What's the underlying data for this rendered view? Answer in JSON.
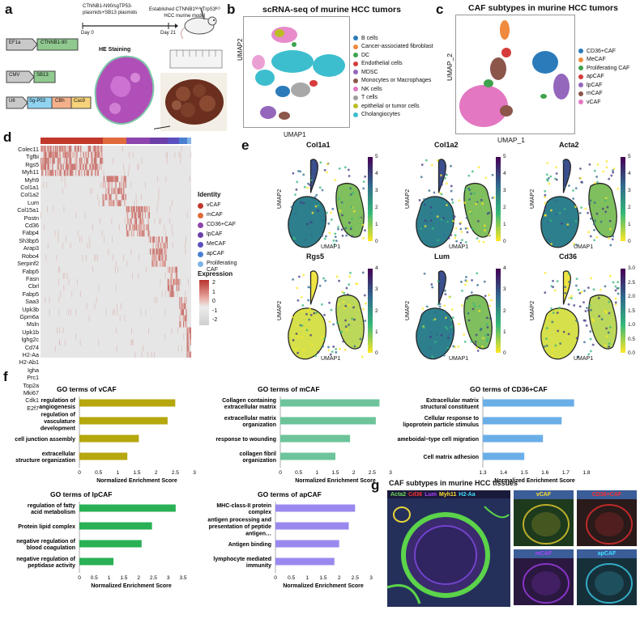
{
  "panels": {
    "a": {
      "label": "a",
      "timeline_top": "CTNNB1-N90/sgTP53-",
      "timeline_top2": "plasmids+SB13 plasmids",
      "day0": "Day 0",
      "est_line1": "Established CTNNB1ᴺ⁹⁰/TrpS3ᴷᴼ",
      "est_line2": "HCC murine model",
      "day21": "Day 21",
      "he_title": "HE Staining",
      "constructs": [
        {
          "promoter": "EF1a",
          "gene": "CTNNB1-90",
          "gene_color": "#8fc98f"
        },
        {
          "promoter": "CMV",
          "gene": "SB13",
          "gene_color": "#8fc98f"
        },
        {
          "promoter": "U6",
          "gene": "Sg-P53",
          "gene_color": "#8fd3f0",
          "extra1": "CBh",
          "extra1_color": "#f3b08a",
          "extra2": "Cas9",
          "extra2_color": "#f7d27a"
        }
      ]
    },
    "b": {
      "label": "b",
      "title": "scRNA-seq of murine HCC tumors",
      "xlabel": "UMAP1",
      "ylabel": "UMAP2",
      "legend": [
        {
          "name": "B cells",
          "color": "#2b7bba"
        },
        {
          "name": "Cancer-associated fibroblast",
          "color": "#f08a3c"
        },
        {
          "name": "DC",
          "color": "#3fa34d"
        },
        {
          "name": "Endothelial cells",
          "color": "#d63b3b"
        },
        {
          "name": "MDSC",
          "color": "#9467bd"
        },
        {
          "name": "Monocytes or Macrophages",
          "color": "#8c564b"
        },
        {
          "name": "NK cells",
          "color": "#e377c2"
        },
        {
          "name": "T cells",
          "color": "#9e9e9e"
        },
        {
          "name": "epithelial or tumor cells",
          "color": "#bcbd22"
        },
        {
          "name": "Cholangiocytes",
          "color": "#3dbecf"
        }
      ]
    },
    "c": {
      "label": "c",
      "title": "CAF subtypes in murine HCC tumors",
      "xlabel": "UMAP_1",
      "ylabel": "UMAP_2",
      "legend": [
        {
          "name": "CD36+CAF",
          "color": "#2b7bba"
        },
        {
          "name": "MeCAF",
          "color": "#f08a3c"
        },
        {
          "name": "Proliferating CAF",
          "color": "#3fa34d"
        },
        {
          "name": "apCAF",
          "color": "#d63b3b"
        },
        {
          "name": "lpCAF",
          "color": "#9467bd"
        },
        {
          "name": "mCAF",
          "color": "#8c564b"
        },
        {
          "name": "vCAF",
          "color": "#e377c2"
        }
      ]
    },
    "d": {
      "label": "d",
      "genes": [
        "Colec11",
        "Tgfbi",
        "Rgs5",
        "Myh11",
        "Myh9",
        "Col1a1",
        "Col1a2",
        "Lum",
        "Col15a1",
        "Postn",
        "Cd36",
        "Fabp4",
        "Sh3bp5",
        "Arap3",
        "Robo4",
        "Serpinf2",
        "Fabp5",
        "Fasn",
        "Cbrl",
        "Fabp5",
        "Saa3",
        "Upk3b",
        "Gpm6a",
        "Msln",
        "Upk1b",
        "Ighg2c",
        "Cd74",
        "H2-Aa",
        "H2-Ab1",
        "Igha",
        "Prc1",
        "Top2a",
        "Mki67",
        "Cdk1",
        "E2f7"
      ],
      "identity_title": "Identity",
      "identity": [
        {
          "name": "vCAF",
          "color": "#c0392b"
        },
        {
          "name": "mCAF",
          "color": "#e06a3b"
        },
        {
          "name": "CD36+CAF",
          "color": "#8e44ad"
        },
        {
          "name": "lpCAF",
          "color": "#6c3fa8"
        },
        {
          "name": "MeCAF",
          "color": "#5b4fc0"
        },
        {
          "name": "apCAF",
          "color": "#4a7fd0"
        },
        {
          "name": "Proliferating CAF",
          "color": "#7fb3e8"
        }
      ],
      "expression_title": "Expression",
      "expression_ticks": [
        "2",
        "1",
        "0",
        "-1",
        "-2"
      ]
    },
    "e": {
      "label": "e",
      "xlabel": "UMAP1",
      "ylabel": "UMAP2",
      "plots": [
        {
          "gene": "Col1a1",
          "ticks": [
            "5",
            "4",
            "3",
            "2",
            "1",
            "0"
          ]
        },
        {
          "gene": "Col1a2",
          "ticks": [
            "5",
            "4",
            "3",
            "2",
            "1",
            "0"
          ]
        },
        {
          "gene": "Acta2",
          "ticks": [
            "5",
            "4",
            "3",
            "2",
            "1",
            "0"
          ]
        },
        {
          "gene": "Rgs5",
          "ticks": [
            "4",
            "3",
            "2",
            "1",
            "0"
          ]
        },
        {
          "gene": "Lum",
          "ticks": [
            "4",
            "3",
            "2",
            "1",
            "0"
          ]
        },
        {
          "gene": "Cd36",
          "ticks": [
            "3.0",
            "2.5",
            "2.0",
            "1.5",
            "1.0",
            "0.5",
            "0.0"
          ]
        }
      ]
    },
    "f": {
      "label": "f",
      "xlabel": "Normalized Enrichment Score"
    },
    "g": {
      "label": "g",
      "title": "CAF subtypes in murine HCC tissues",
      "legend": [
        {
          "name": "Acta2",
          "color": "#6fdc5a"
        },
        {
          "name": "Cd36",
          "color": "#ff3030"
        },
        {
          "name": "Lum",
          "color": "#b040ff"
        },
        {
          "name": "Myh11",
          "color": "#ffe030"
        },
        {
          "name": "H2-Aa",
          "color": "#40e0ff"
        }
      ],
      "small": [
        {
          "name": "vCAF",
          "color": "#ffe030"
        },
        {
          "name": "CD36+CAF",
          "color": "#ff3030"
        },
        {
          "name": "mCAF",
          "color": "#b040ff"
        },
        {
          "name": "apCAF",
          "color": "#40e0ff"
        }
      ]
    }
  },
  "chart_data": [
    {
      "type": "bar",
      "orientation": "horizontal",
      "title": "GO terms of vCAF",
      "color": "#b5a70d",
      "categories": [
        "regulation of angiogenesis",
        "regulation of vasculature development",
        "cell junction assembly",
        "extracellular structure organization"
      ],
      "values": [
        2.5,
        2.3,
        1.55,
        1.25
      ],
      "xlim": [
        0,
        3
      ],
      "xticks": [
        "0",
        "0.5",
        "1",
        "1.5",
        "2",
        "2.5",
        "3"
      ],
      "xlabel": "Normalized Enrichment Score"
    },
    {
      "type": "bar",
      "orientation": "horizontal",
      "title": "GO terms of mCAF",
      "color": "#6dc49a",
      "categories": [
        "Collagen containing extracellular matrix",
        "extracellular matrix organization",
        "response to wounding",
        "collagen fibril organization"
      ],
      "values": [
        2.7,
        2.6,
        1.9,
        1.5
      ],
      "xlim": [
        0,
        3
      ],
      "xticks": [
        "0",
        "0.5",
        "1",
        "1.5",
        "2",
        "2.5",
        "3"
      ],
      "xlabel": "Normalized Enrichment Score"
    },
    {
      "type": "bar",
      "orientation": "horizontal",
      "title": "GO terms of CD36+CAF",
      "color": "#6aaee8",
      "categories": [
        "Extracellular matrix structural constituent",
        "Cellular response to lipoprotein particle stimulus",
        "ameboidal−type cell migration",
        "Cell matrix adhesion"
      ],
      "values": [
        1.74,
        1.68,
        1.59,
        1.5
      ],
      "xlim": [
        1.3,
        1.8
      ],
      "xticks": [
        "1.3",
        "1.4",
        "1.5",
        "1.6",
        "1.7",
        "1.8"
      ],
      "xlabel": "Normalized Enrichment Score"
    },
    {
      "type": "bar",
      "orientation": "horizontal",
      "title": "GO terms of lpCAF",
      "color": "#2ab055",
      "categories": [
        "regulation of fatty acid metabolism",
        "Protein lipid complex",
        "negative regulation of blood coagulation",
        "negative regulation of peptidase activity"
      ],
      "values": [
        3.25,
        2.45,
        2.1,
        1.15
      ],
      "xlim": [
        0,
        3.5
      ],
      "xticks": [
        "0",
        "0.5",
        "1",
        "1.5",
        "2",
        "2.5",
        "3",
        "3.5"
      ],
      "xlabel": "Normalized Enrichment Score"
    },
    {
      "type": "bar",
      "orientation": "horizontal",
      "title": "GO terms of apCAF",
      "color": "#9b88ee",
      "categories": [
        "MHC-class-II protein complex",
        "antigen processing and presentation of peptide antigen…",
        "Antigen binding",
        "lymphocyte mediated immunity"
      ],
      "values": [
        2.5,
        2.3,
        2.0,
        1.85
      ],
      "xlim": [
        0,
        3
      ],
      "xticks": [
        "0",
        "0.5",
        "1",
        "1.5",
        "2",
        "2.5",
        "3"
      ],
      "xlabel": "Normalized Enrichment Score"
    }
  ]
}
